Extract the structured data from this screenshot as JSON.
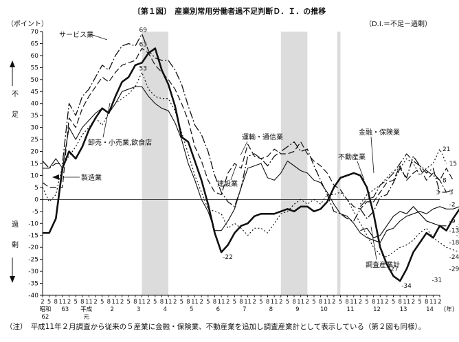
{
  "header": {
    "title": "〔第１図〕　産業別常用労働者過不足判断Ｄ．Ｉ．の推移",
    "unit": "（ポイント）",
    "definition": "（D.I.＝不足－過剰）"
  },
  "note": "（注）　平成11年２月調査から従来の５産業に金融・保険業、不動産業を追加し調査産業計として表示している（第２図も同様）。",
  "colors": {
    "ink": "#111111",
    "shade": "#dcdcdc",
    "background": "#ffffff"
  },
  "chart_data": {
    "type": "line",
    "ylim": [
      -40,
      70
    ],
    "yticks": [
      "70",
      "65",
      "60",
      "55",
      "50",
      "45",
      "40",
      "35",
      "30",
      "25",
      "20",
      "15",
      "10",
      "5",
      "0",
      "-5",
      "-10",
      "-15",
      "-20",
      "-25",
      "-30",
      "-35",
      "-40"
    ],
    "side_labels": {
      "shortage": "不足",
      "surplus": "過剰"
    },
    "month_labels": [
      "2",
      "5",
      "8",
      "11",
      "2",
      "5",
      "8",
      "11",
      "2",
      "5",
      "8",
      "11",
      "2",
      "5",
      "8",
      "11",
      "2",
      "5",
      "8",
      "11",
      "2",
      "5",
      "8",
      "11",
      "2",
      "5",
      "8",
      "11",
      "2",
      "5",
      "8",
      "11",
      "2",
      "5",
      "8",
      "11",
      "2",
      "5",
      "8",
      "11",
      "2",
      "5",
      "8",
      "11",
      "2",
      "5",
      "8",
      "11",
      "2",
      "5",
      "8",
      "11",
      "2",
      "5",
      "8",
      "11",
      "2",
      "5",
      "8",
      "11",
      "2"
    ],
    "year_labels": [
      {
        "idx": 0.4,
        "text": "昭和"
      },
      {
        "idx": 0.4,
        "text": "62"
      },
      {
        "idx": 3.4,
        "text": "63"
      },
      {
        "idx": 6.6,
        "text": "平成"
      },
      {
        "idx": 6.6,
        "text": "元"
      },
      {
        "idx": 10.5,
        "text": "2"
      },
      {
        "idx": 14.5,
        "text": "3"
      },
      {
        "idx": 18.5,
        "text": "4"
      },
      {
        "idx": 22.5,
        "text": "5"
      },
      {
        "idx": 26.5,
        "text": "6"
      },
      {
        "idx": 30.5,
        "text": "7"
      },
      {
        "idx": 34.5,
        "text": "8"
      },
      {
        "idx": 38.5,
        "text": "9"
      },
      {
        "idx": 42.5,
        "text": "10"
      },
      {
        "idx": 46.5,
        "text": "11"
      },
      {
        "idx": 50.5,
        "text": "12"
      },
      {
        "idx": 54.5,
        "text": "13"
      },
      {
        "idx": 58.5,
        "text": "14"
      }
    ],
    "year_suffix": "(年)",
    "shaded_ranges": [
      [
        15,
        19
      ],
      [
        36,
        40
      ],
      [
        44.5,
        45
      ]
    ],
    "series": [
      {
        "name": "製造業",
        "dash": "",
        "width": 2.6,
        "start": 0,
        "values": [
          -14,
          -14,
          -8,
          13,
          20,
          17,
          22,
          29,
          34,
          38,
          36,
          43,
          49,
          51,
          56,
          57,
          61,
          63,
          54,
          48,
          39,
          26,
          24,
          16,
          8,
          -2,
          -14,
          -22,
          -19,
          -14,
          -11,
          -10,
          -7,
          -6,
          -6,
          -6,
          -5,
          -4,
          -5,
          -3,
          -3,
          -5,
          -4,
          -1,
          5,
          9,
          10,
          11,
          10,
          5,
          -6,
          -20,
          -27,
          -32,
          -34,
          -29,
          -22,
          -18,
          -14,
          -16,
          -11,
          -13,
          -8,
          -4,
          -3,
          -6,
          -9,
          -12,
          -15
        ]
      },
      {
        "name": "サービス業",
        "dash": "12 3 2 3",
        "width": 1.3,
        "start": 0,
        "values": [
          16,
          13,
          15,
          15,
          40,
          35,
          43,
          46,
          51,
          56,
          54,
          60,
          64,
          65,
          64,
          69,
          62,
          59,
          58,
          58,
          54,
          48,
          39,
          31,
          27,
          20,
          10,
          3,
          -1,
          -3,
          5,
          18,
          19,
          17,
          14,
          18,
          20,
          22,
          24,
          20,
          21,
          14,
          8,
          2,
          -5,
          -6,
          -8,
          -9,
          -4,
          -8,
          -5,
          1,
          2,
          7,
          13,
          9,
          18,
          14,
          11,
          13,
          3,
          3,
          4
        ]
      },
      {
        "name": "卸売・小売業,飲食店",
        "dash": "2 3",
        "width": 1.2,
        "start": 0,
        "values": [
          5,
          -1,
          2,
          14,
          18,
          22,
          27,
          30,
          34,
          31,
          36,
          40,
          42,
          44,
          47,
          53,
          46,
          43,
          42,
          42,
          37,
          28,
          19,
          10,
          3,
          -4,
          -5,
          -6,
          -12,
          -10,
          -12,
          -15,
          -12,
          -12,
          -14,
          -10,
          -6,
          -5,
          -2,
          0,
          -2,
          0,
          -2,
          2,
          2,
          3,
          0,
          -5,
          -10,
          -15,
          -20,
          -23,
          -24,
          -22,
          -20,
          -19,
          -17,
          -14,
          -12,
          -16,
          -18,
          -20,
          -21,
          -22,
          -23,
          -24
        ]
      },
      {
        "name": "運輸・通信業",
        "dash": "9 4",
        "width": 1.2,
        "start": 0,
        "values": [
          7,
          5,
          5,
          5,
          34,
          30,
          38,
          43,
          47,
          51,
          49,
          53,
          56,
          57,
          58,
          63,
          61,
          56,
          53,
          50,
          46,
          40,
          33,
          22,
          16,
          8,
          3,
          2,
          11,
          15,
          13,
          23,
          18,
          17,
          18,
          21,
          19,
          19,
          20,
          24,
          19,
          16,
          14,
          11,
          6,
          4,
          0,
          -3,
          -4,
          -1,
          -1,
          3,
          7,
          8,
          14,
          8,
          11,
          13,
          8,
          11,
          8,
          13,
          8
        ]
      },
      {
        "name": "建設業",
        "dash": "",
        "width": 1.1,
        "start": 0,
        "values": [
          13,
          13,
          17,
          13,
          30,
          25,
          30,
          33,
          36,
          38,
          36,
          40,
          45,
          46,
          47,
          47,
          43,
          40,
          38,
          37,
          32,
          25,
          15,
          8,
          0,
          -5,
          -13,
          -13,
          -9,
          -4,
          5,
          13,
          14,
          15,
          9,
          8,
          11,
          16,
          14,
          12,
          11,
          8,
          7,
          3,
          -2,
          -6,
          -7,
          -10,
          -14,
          -16,
          -17,
          -18,
          -13,
          -12,
          -9,
          -7,
          -6,
          -5,
          -6,
          -4,
          -3,
          -4,
          -4,
          -3
        ]
      },
      {
        "name": "金融・保険業",
        "dash": "2 3",
        "width": 1.2,
        "start": 48,
        "values": [
          -2,
          2,
          4,
          6,
          9,
          12,
          13,
          17,
          15,
          10,
          13,
          15,
          21,
          15
        ]
      },
      {
        "name": "不動産業",
        "dash": "12 3 2 3",
        "width": 1.2,
        "start": 48,
        "values": [
          -3,
          0,
          1,
          6,
          8,
          11,
          15,
          19,
          16,
          14,
          12,
          10,
          8,
          3
        ]
      },
      {
        "name": "調査産業計",
        "dash": "",
        "width": 1.2,
        "start": 48,
        "values": [
          -13,
          -12,
          -16,
          -15,
          -11,
          -7,
          -5,
          -6,
          -3,
          -6,
          -9,
          -10,
          -11,
          -11
        ]
      }
    ],
    "labels": {
      "mfg": "製造業",
      "svc": "サービス業",
      "retail": "卸売・小売業,飲食店",
      "transport": "運輸・通信業",
      "construction": "建設業",
      "finance": "金融・保険業",
      "realestate": "不動産業",
      "all": "調査産業計"
    },
    "annotations": [
      {
        "text": "69",
        "idx": 15,
        "y": 69
      },
      {
        "text": "63",
        "idx": 15,
        "y": 63
      },
      {
        "text": "53",
        "idx": 15,
        "y": 53
      },
      {
        "text": "-22",
        "idx": 27,
        "y": -22
      },
      {
        "text": "-27",
        "idx": 52,
        "y": -27
      },
      {
        "text": "-34",
        "idx": 54,
        "y": -34
      },
      {
        "text": "21",
        "idx": 60,
        "y": 21
      },
      {
        "text": "15",
        "idx": 61,
        "y": 15
      },
      {
        "text": "8",
        "idx": 60,
        "y": 8
      },
      {
        "text": "3",
        "idx": 61,
        "y": 3
      },
      {
        "text": "3",
        "idx": 59,
        "y": 3
      },
      {
        "text": "-2",
        "idx": 61,
        "y": -2
      },
      {
        "text": "-9",
        "idx": 61,
        "y": -9
      },
      {
        "text": "-11",
        "idx": 62,
        "y": -11
      },
      {
        "text": "-13",
        "idx": 61,
        "y": -13
      },
      {
        "text": "-15",
        "idx": 62,
        "y": -15
      },
      {
        "text": "-18",
        "idx": 61,
        "y": -18
      },
      {
        "text": "-24",
        "idx": 61,
        "y": -24
      },
      {
        "text": "-29",
        "idx": 61,
        "y": -29
      },
      {
        "text": "-31",
        "idx": 59,
        "y": -31
      }
    ]
  }
}
